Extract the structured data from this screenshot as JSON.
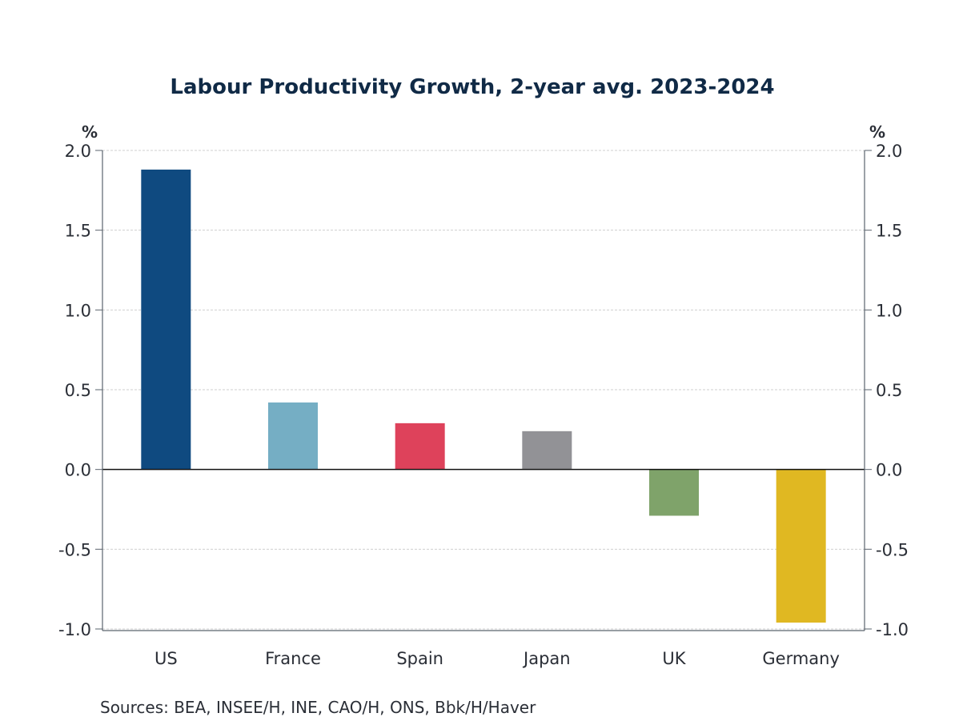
{
  "chart_data": {
    "type": "bar",
    "title": "Labour Productivity Growth, 2-year avg. 2023-2024",
    "xlabel": "",
    "ylabel": "%",
    "ylabel_right": "%",
    "ylim": [
      -1.0,
      2.0
    ],
    "yticks": [
      2.0,
      1.5,
      1.0,
      0.5,
      0.0,
      -0.5,
      -1.0
    ],
    "ytick_labels": [
      "2.0",
      "1.5",
      "1.0",
      "0.5",
      "0.0",
      "-0.5",
      "-1.0"
    ],
    "grid": true,
    "categories": [
      "US",
      "France",
      "Spain",
      "Japan",
      "UK",
      "Germany"
    ],
    "values": [
      1.88,
      0.42,
      0.29,
      0.24,
      -0.29,
      -0.96
    ],
    "colors": [
      "#0f4a80",
      "#75aec4",
      "#de425b",
      "#929296",
      "#7fa36a",
      "#e0b822"
    ],
    "source": "Sources:  BEA, INSEE/H, INE, CAO/H, ONS, Bbk/H/Haver"
  }
}
